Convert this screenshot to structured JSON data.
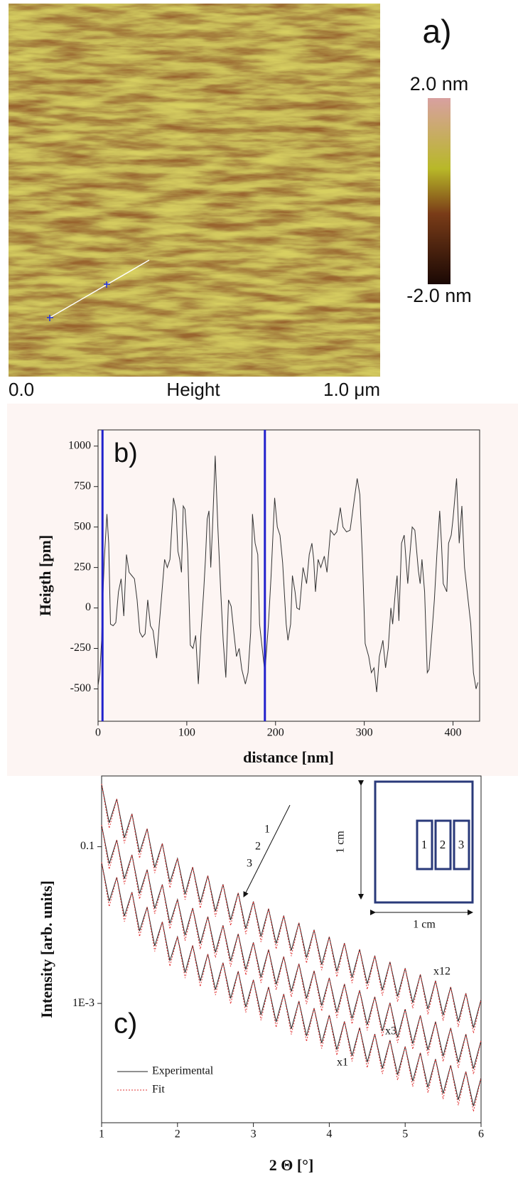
{
  "chart_data": [
    {
      "type": "image",
      "title": "a)",
      "channel": "Height",
      "xlim": [
        0,
        1
      ],
      "xticks": [
        {
          "value": 0,
          "label": "0.0"
        },
        {
          "value": 1,
          "label": "1.0 μm"
        }
      ],
      "clim": [
        -2,
        2
      ],
      "cticks": [
        {
          "value": 2,
          "label": "2.0 nm"
        },
        {
          "value": -2,
          "label": "-2.0 nm"
        }
      ]
    },
    {
      "type": "line",
      "title": "b)",
      "x_label": "distance [nm]",
      "y_label": "Heigth [pm]",
      "xlim": [
        0,
        430
      ],
      "xticks": [
        0,
        100,
        200,
        300,
        400
      ],
      "ylim": [
        -700,
        1100
      ],
      "yticks": [
        -500,
        -250,
        0,
        250,
        500,
        750,
        1000
      ],
      "cursors": [
        5,
        188
      ],
      "cursor_color": "#2222cc",
      "x": [
        0,
        2,
        4,
        5,
        7,
        10,
        12,
        14,
        17,
        20,
        23,
        26,
        29,
        32,
        35,
        38,
        41,
        44,
        47,
        50,
        53,
        56,
        59,
        62,
        66,
        69,
        72,
        75,
        78,
        81,
        85,
        88,
        90,
        92,
        94,
        96,
        98,
        101,
        104,
        107,
        110,
        113,
        116,
        119,
        121,
        123,
        125,
        127,
        129,
        132,
        135,
        138,
        141,
        144,
        147,
        150,
        153,
        156,
        159,
        162,
        166,
        169,
        172,
        174,
        177,
        180,
        182,
        185,
        188,
        192,
        195,
        199,
        202,
        205,
        208,
        212,
        214,
        217,
        219,
        222,
        224,
        227,
        231,
        235,
        238,
        241,
        243,
        245,
        248,
        251,
        255,
        258,
        262,
        266,
        269,
        273,
        276,
        280,
        284,
        287,
        292,
        295,
        298,
        301,
        305,
        308,
        311,
        314,
        317,
        321,
        324,
        327,
        330,
        332,
        335,
        337,
        339,
        342,
        345,
        349,
        351,
        354,
        357,
        361,
        363,
        365,
        368,
        371,
        373,
        377,
        379,
        382,
        385,
        387,
        389,
        393,
        395,
        398,
        400,
        404,
        407,
        410,
        413,
        416,
        420,
        423,
        426,
        428
      ],
      "series": [
        {
          "color": "#333333",
          "values": [
            -480,
            -400,
            -200,
            0,
            300,
            580,
            400,
            -100,
            -110,
            -90,
            100,
            180,
            -50,
            330,
            220,
            200,
            180,
            50,
            -150,
            -180,
            -160,
            50,
            -110,
            -140,
            -310,
            -100,
            100,
            300,
            250,
            300,
            680,
            600,
            350,
            300,
            220,
            630,
            610,
            350,
            -230,
            -250,
            -170,
            -470,
            -150,
            100,
            300,
            550,
            600,
            250,
            500,
            940,
            500,
            130,
            -200,
            -430,
            50,
            10,
            -150,
            -300,
            -250,
            -380,
            -470,
            -400,
            -150,
            580,
            400,
            330,
            -100,
            -250,
            -400,
            -100,
            200,
            680,
            500,
            450,
            280,
            -100,
            -200,
            -100,
            200,
            100,
            0,
            -10,
            250,
            150,
            330,
            400,
            300,
            100,
            300,
            250,
            320,
            220,
            480,
            450,
            470,
            620,
            500,
            470,
            480,
            600,
            800,
            700,
            300,
            -220,
            -300,
            -400,
            -370,
            -520,
            -300,
            -200,
            -370,
            -250,
            0,
            -100,
            100,
            200,
            -80,
            400,
            450,
            150,
            300,
            500,
            480,
            230,
            150,
            300,
            100,
            -400,
            -380,
            -100,
            50,
            350,
            600,
            400,
            150,
            100,
            400,
            450,
            550,
            800,
            400,
            630,
            250,
            100,
            -100,
            -400,
            -500,
            -460
          ]
        }
      ]
    },
    {
      "type": "line",
      "log_y": true,
      "title": "c)",
      "x_label": "2 Θ [°]",
      "y_label": "Intensity [arb. units]",
      "xlim": [
        1,
        6
      ],
      "xticks": [
        1,
        2,
        3,
        4,
        5,
        6
      ],
      "ylim": [
        3e-05,
        0.8
      ],
      "yticks": [
        {
          "value": 0.1,
          "label": "0.1"
        },
        {
          "value": 0.001,
          "label": "1E-3"
        }
      ],
      "annotations": [
        "1",
        "2",
        "3",
        "x12",
        "x3",
        "x1",
        "1 cm",
        "1 cm",
        "1",
        "2",
        "3"
      ],
      "legend": [
        {
          "name": "Experimental",
          "color": "#222222",
          "style": "solid"
        },
        {
          "name": "Fit",
          "color": "#e03030",
          "style": "dotted"
        }
      ],
      "x": [
        1.0,
        1.1,
        1.2,
        1.3,
        1.4,
        1.5,
        1.6,
        1.7,
        1.8,
        1.9,
        2.0,
        2.1,
        2.2,
        2.3,
        2.4,
        2.5,
        2.6,
        2.7,
        2.8,
        2.9,
        3.0,
        3.1,
        3.2,
        3.3,
        3.4,
        3.5,
        3.6,
        3.7,
        3.8,
        3.9,
        4.0,
        4.1,
        4.2,
        4.3,
        4.4,
        4.5,
        4.6,
        4.7,
        4.8,
        4.9,
        5.0,
        5.1,
        5.2,
        5.3,
        5.4,
        5.5,
        5.6,
        5.7,
        5.8,
        5.9,
        6.0
      ],
      "series": [
        {
          "color": "#222222",
          "style": "solid",
          "values": [
            0.631,
            0.202,
            0.407,
            0.13,
            0.263,
            0.0841,
            0.17,
            0.0543,
            0.11,
            0.0351,
            0.0708,
            0.0248,
            0.055,
            0.0193,
            0.0427,
            0.015,
            0.0331,
            0.0116,
            0.0257,
            0.00902,
            0.02,
            0.00716,
            0.0162,
            0.00582,
            0.0132,
            0.00473,
            0.0107,
            0.00385,
            0.00871,
            0.00313,
            0.00708,
            0.00257,
            0.00589,
            0.00214,
            0.0049,
            0.00178,
            0.00407,
            0.00148,
            0.00339,
            0.00123,
            0.00282,
            0.00102,
            0.00234,
            0.000851,
            0.00195,
            0.000708,
            0.00162,
            0.000589,
            0.00135,
            0.00049,
            0.00112
          ]
        },
        {
          "color": "#222222",
          "style": "solid",
          "values": [
            0.189,
            0.0606,
            0.122,
            0.039,
            0.0789,
            0.0252,
            0.051,
            0.0163,
            0.033,
            0.0105,
            0.0212,
            0.00744,
            0.0165,
            0.00579,
            0.0128,
            0.0045,
            0.00993,
            0.00348,
            0.00771,
            0.00271,
            0.006,
            0.00215,
            0.00486,
            0.00175,
            0.00396,
            0.00142,
            0.00321,
            0.00116,
            0.00261,
            0.000939,
            0.00212,
            0.000771,
            0.00177,
            0.000642,
            0.00147,
            0.000534,
            0.00122,
            0.000444,
            0.00102,
            0.000369,
            0.000846,
            0.000306,
            0.000702,
            0.000255,
            0.000585,
            0.000212,
            0.000486,
            0.000177,
            0.000405,
            0.000147,
            0.000336
          ]
        },
        {
          "color": "#222222",
          "style": "solid",
          "values": [
            0.0631,
            0.0202,
            0.0407,
            0.013,
            0.0263,
            0.00841,
            0.017,
            0.00543,
            0.011,
            0.00351,
            0.00708,
            0.00248,
            0.0055,
            0.00193,
            0.00427,
            0.0015,
            0.00331,
            0.00116,
            0.00257,
            0.000902,
            0.002,
            0.000716,
            0.00162,
            0.000582,
            0.00132,
            0.000473,
            0.00107,
            0.000385,
            0.000871,
            0.000313,
            0.000708,
            0.000257,
            0.000589,
            0.000214,
            0.00049,
            0.000178,
            0.000407,
            0.000148,
            0.000339,
            0.000123,
            0.000282,
            0.000102,
            0.000234,
            8.51e-05,
            0.000195,
            7.08e-05,
            0.000162,
            5.89e-05,
            0.000135,
            4.9e-05,
            0.000112
          ]
        },
        {
          "color": "#e03030",
          "style": "dotted",
          "values": [
            0.631,
            0.172,
            0.407,
            0.111,
            0.263,
            0.0715,
            0.17,
            0.0462,
            0.11,
            0.0298,
            0.0708,
            0.0211,
            0.055,
            0.0164,
            0.0427,
            0.0128,
            0.0331,
            0.00986,
            0.0257,
            0.00767,
            0.02,
            0.00609,
            0.0162,
            0.00495,
            0.0132,
            0.00402,
            0.0107,
            0.00327,
            0.00871,
            0.00266,
            0.00708,
            0.00218,
            0.00589,
            0.00182,
            0.0049,
            0.00151,
            0.00407,
            0.00126,
            0.00339,
            0.00105,
            0.00282,
            0.000867,
            0.00234,
            0.000723,
            0.00195,
            0.000602,
            0.00162,
            0.000501,
            0.00135,
            0.000417,
            0.00112
          ]
        },
        {
          "color": "#e03030",
          "style": "dotted",
          "values": [
            0.189,
            0.0516,
            0.122,
            0.0333,
            0.0789,
            0.0215,
            0.051,
            0.0139,
            0.033,
            0.00894,
            0.0212,
            0.00633,
            0.0165,
            0.00492,
            0.0128,
            0.00384,
            0.00993,
            0.00296,
            0.00771,
            0.0023,
            0.006,
            0.00183,
            0.00486,
            0.00149,
            0.00396,
            0.00121,
            0.00321,
            0.000981,
            0.00261,
            0.000798,
            0.00212,
            0.000654,
            0.00177,
            0.000546,
            0.00147,
            0.000453,
            0.00122,
            0.000378,
            0.00102,
            0.000315,
            0.000846,
            0.00026,
            0.000702,
            0.000217,
            0.000585,
            0.000181,
            0.000486,
            0.00015,
            0.000405,
            0.000125,
            0.000336
          ]
        },
        {
          "color": "#e03030",
          "style": "dotted",
          "values": [
            0.0631,
            0.0172,
            0.0407,
            0.0111,
            0.0263,
            0.00715,
            0.017,
            0.00462,
            0.011,
            0.00298,
            0.00708,
            0.00211,
            0.0055,
            0.00164,
            0.00427,
            0.00128,
            0.00331,
            0.000986,
            0.00257,
            0.000767,
            0.002,
            0.000609,
            0.00162,
            0.000495,
            0.00132,
            0.000402,
            0.00107,
            0.000327,
            0.000871,
            0.000266,
            0.000708,
            0.000218,
            0.000589,
            0.000182,
            0.00049,
            0.000151,
            0.000407,
            0.000126,
            0.000339,
            0.000105,
            0.000282,
            8.67e-05,
            0.000234,
            7.23e-05,
            0.000195,
            6.02e-05,
            0.000162,
            5.01e-05,
            0.000135,
            4.17e-05,
            0.000112
          ]
        }
      ]
    }
  ]
}
